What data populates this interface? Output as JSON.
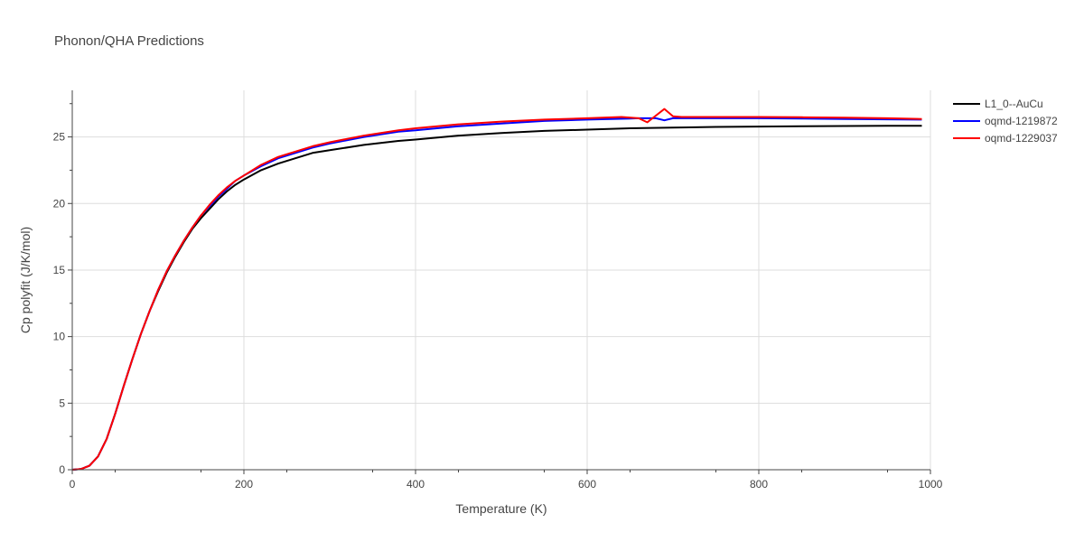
{
  "chart_data": {
    "type": "line",
    "title": "Phonon/QHA Predictions",
    "xlabel": "Temperature (K)",
    "ylabel": "Cp polyfit (J/K/mol)",
    "xlim": [
      0,
      1000
    ],
    "ylim": [
      0,
      28.5
    ],
    "xticks": [
      0,
      200,
      400,
      600,
      800,
      1000
    ],
    "yticks": [
      0,
      5,
      10,
      15,
      20,
      25
    ],
    "grid": true,
    "legend_position": "top-right",
    "series": [
      {
        "name": "L1_0--AuCu",
        "color": "#000000",
        "x": [
          0,
          10,
          20,
          30,
          40,
          50,
          60,
          70,
          80,
          90,
          100,
          110,
          120,
          130,
          140,
          150,
          160,
          170,
          180,
          190,
          200,
          220,
          240,
          260,
          280,
          300,
          340,
          380,
          400,
          450,
          500,
          550,
          600,
          650,
          700,
          750,
          800,
          850,
          900,
          950,
          990
        ],
        "y": [
          0,
          0.05,
          0.3,
          1.0,
          2.3,
          4.2,
          6.3,
          8.3,
          10.2,
          11.9,
          13.4,
          14.8,
          16.0,
          17.1,
          18.1,
          18.9,
          19.6,
          20.3,
          20.9,
          21.4,
          21.8,
          22.5,
          23.0,
          23.4,
          23.8,
          24.0,
          24.4,
          24.7,
          24.8,
          25.1,
          25.3,
          25.45,
          25.55,
          25.65,
          25.7,
          25.75,
          25.78,
          25.8,
          25.82,
          25.83,
          25.83
        ]
      },
      {
        "name": "oqmd-1219872",
        "color": "#0000ff",
        "x": [
          0,
          10,
          20,
          30,
          40,
          50,
          60,
          70,
          80,
          90,
          100,
          110,
          120,
          130,
          140,
          150,
          160,
          170,
          180,
          190,
          200,
          220,
          240,
          260,
          280,
          300,
          340,
          380,
          400,
          450,
          500,
          550,
          600,
          650,
          660,
          670,
          680,
          690,
          700,
          710,
          720,
          750,
          800,
          850,
          900,
          950,
          990
        ],
        "y": [
          0,
          0.05,
          0.3,
          1.0,
          2.3,
          4.2,
          6.3,
          8.3,
          10.2,
          11.9,
          13.5,
          14.9,
          16.1,
          17.2,
          18.2,
          19.1,
          19.8,
          20.5,
          21.1,
          21.7,
          22.1,
          22.8,
          23.4,
          23.8,
          24.2,
          24.5,
          25.0,
          25.4,
          25.5,
          25.8,
          26.0,
          26.2,
          26.3,
          26.38,
          26.4,
          26.4,
          26.4,
          26.25,
          26.4,
          26.42,
          26.4,
          26.4,
          26.4,
          26.38,
          26.35,
          26.32,
          26.3
        ]
      },
      {
        "name": "oqmd-1229037",
        "color": "#ff0000",
        "x": [
          0,
          10,
          20,
          30,
          40,
          50,
          60,
          70,
          80,
          90,
          100,
          110,
          120,
          130,
          140,
          150,
          160,
          170,
          180,
          190,
          200,
          220,
          240,
          260,
          280,
          300,
          340,
          380,
          400,
          450,
          500,
          550,
          600,
          640,
          660,
          670,
          680,
          690,
          700,
          710,
          720,
          750,
          800,
          850,
          900,
          950,
          990
        ],
        "y": [
          0,
          0.05,
          0.3,
          1.0,
          2.3,
          4.2,
          6.3,
          8.3,
          10.2,
          11.9,
          13.5,
          14.9,
          16.1,
          17.2,
          18.2,
          19.1,
          19.9,
          20.6,
          21.2,
          21.7,
          22.1,
          22.9,
          23.5,
          23.9,
          24.3,
          24.6,
          25.1,
          25.5,
          25.65,
          25.95,
          26.15,
          26.3,
          26.4,
          26.5,
          26.4,
          26.1,
          26.6,
          27.1,
          26.55,
          26.5,
          26.5,
          26.5,
          26.5,
          26.48,
          26.45,
          26.4,
          26.35
        ]
      }
    ]
  }
}
